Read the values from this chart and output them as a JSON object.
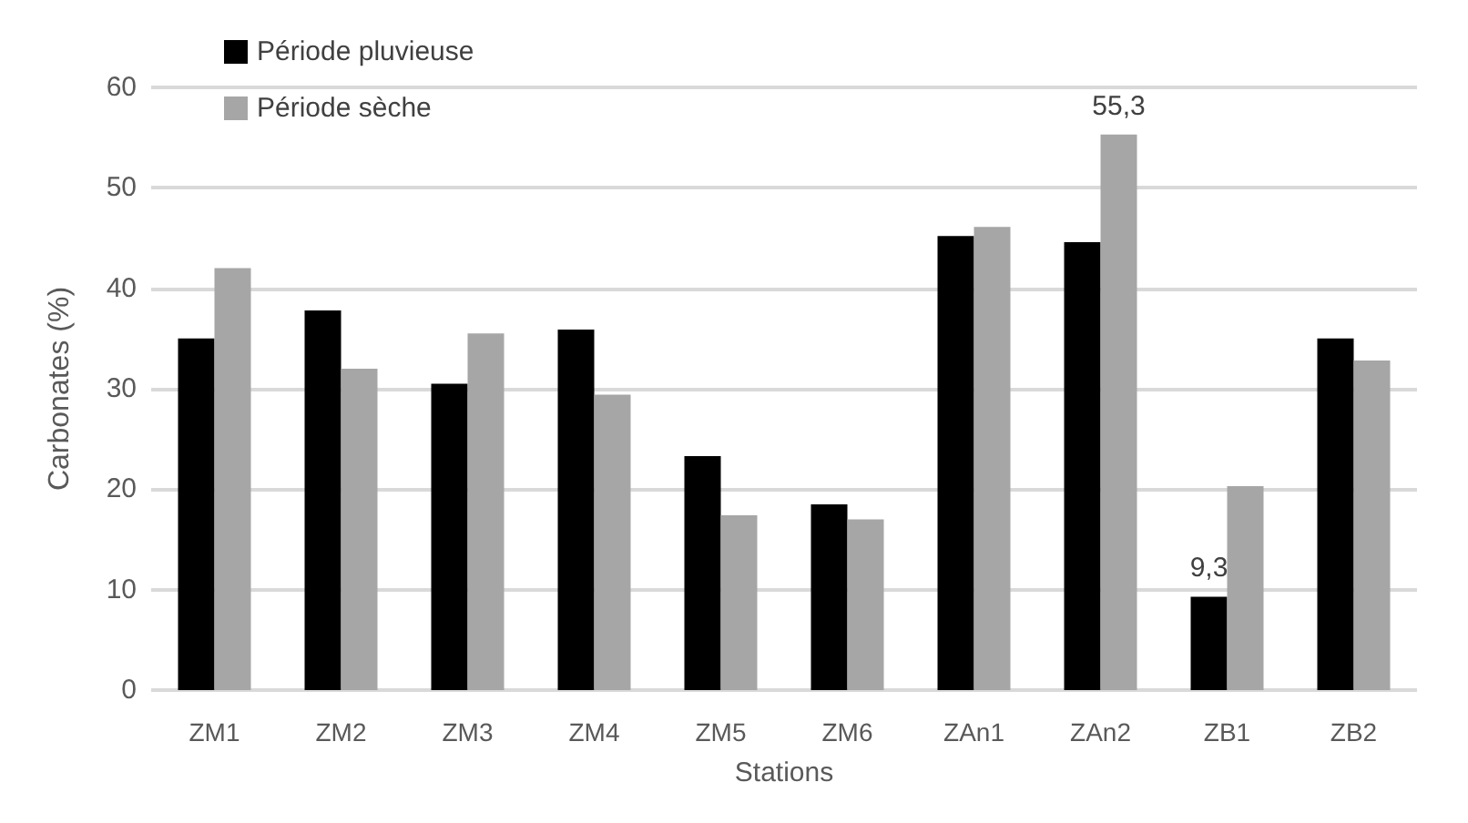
{
  "chart_data": {
    "type": "bar",
    "xlabel": "Stations",
    "ylabel": "Carbonates (%)",
    "categories": [
      "ZM1",
      "ZM2",
      "ZM3",
      "ZM4",
      "ZM5",
      "ZM6",
      "ZAn1",
      "ZAn2",
      "ZB1",
      "ZB2"
    ],
    "series": [
      {
        "name": "Période pluvieuse",
        "color": "#000000",
        "values": [
          35,
          37.8,
          30.5,
          35.9,
          23.3,
          18.5,
          45.2,
          44.6,
          9.3,
          35
        ],
        "value_labels": [
          null,
          null,
          null,
          null,
          null,
          null,
          null,
          null,
          "9,3",
          null
        ]
      },
      {
        "name": "Période sèche",
        "color": "#a6a6a6",
        "values": [
          42,
          32,
          35.5,
          29.4,
          17.4,
          17,
          46.1,
          55.3,
          20.3,
          32.8
        ],
        "value_labels": [
          null,
          null,
          null,
          null,
          null,
          null,
          null,
          "55,3",
          null,
          null
        ]
      }
    ],
    "ylim": [
      0,
      60
    ],
    "yticks": [
      0,
      10,
      20,
      30,
      40,
      50,
      60
    ],
    "grid": "y",
    "legend": "top left"
  }
}
